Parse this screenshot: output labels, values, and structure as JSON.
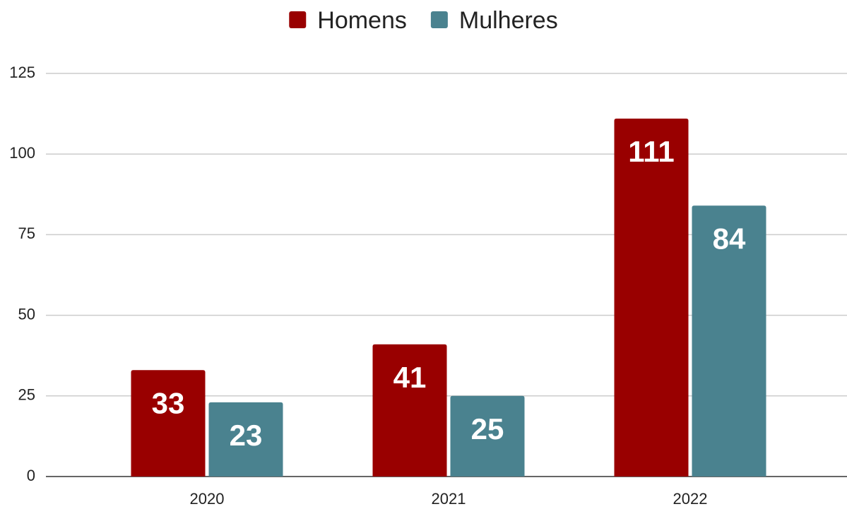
{
  "chart_data": {
    "type": "bar",
    "categories": [
      "2020",
      "2021",
      "2022"
    ],
    "series": [
      {
        "name": "Homens",
        "color": "#990000",
        "values": [
          33,
          41,
          111
        ]
      },
      {
        "name": "Mulheres",
        "color": "#4a828f",
        "values": [
          23,
          25,
          84
        ]
      }
    ],
    "ylim": [
      0,
      125
    ],
    "yticks": [
      0,
      25,
      50,
      75,
      100,
      125
    ],
    "grid": true,
    "legend": "top"
  }
}
